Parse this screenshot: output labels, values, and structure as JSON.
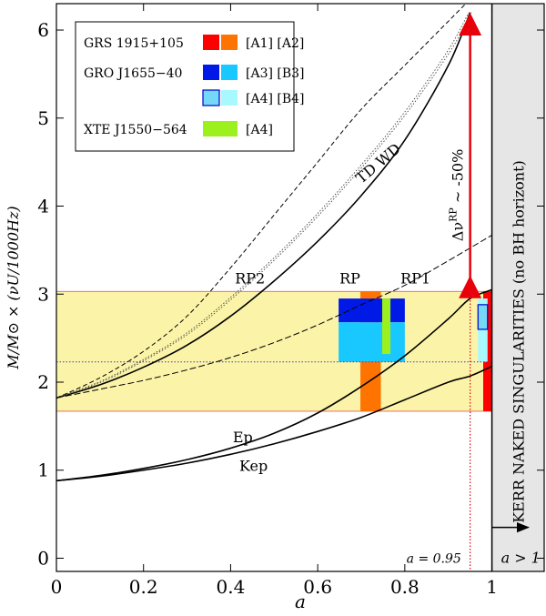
{
  "chart_data": {
    "type": "line",
    "xlabel": "a",
    "ylabel": "M/M⊙ × (νU/1000Hz)",
    "xlim": [
      0,
      1.12
    ],
    "ylim": [
      -0.15,
      6.3
    ],
    "xticks": [
      0,
      0.2,
      0.4,
      0.6,
      0.8,
      1
    ],
    "xtick_labels": [
      "0",
      "0.2",
      "0.4",
      "0.6",
      "0.8",
      "1"
    ],
    "yticks": [
      0,
      1,
      2,
      3,
      4,
      5,
      6
    ],
    "ytick_labels": [
      "0",
      "1",
      "2",
      "3",
      "4",
      "5",
      "6"
    ],
    "series": [
      {
        "name": "Kep",
        "style": "solid",
        "x": [
          0,
          0.1,
          0.2,
          0.3,
          0.4,
          0.5,
          0.6,
          0.7,
          0.8,
          0.9,
          0.95,
          1.0
        ],
        "y": [
          0.88,
          0.93,
          1.0,
          1.08,
          1.18,
          1.3,
          1.44,
          1.6,
          1.8,
          2.0,
          2.07,
          2.18
        ]
      },
      {
        "name": "Ep",
        "style": "solid",
        "x": [
          0,
          0.1,
          0.2,
          0.3,
          0.4,
          0.5,
          0.6,
          0.7,
          0.8,
          0.9,
          0.95,
          1.0
        ],
        "y": [
          0.88,
          0.94,
          1.02,
          1.12,
          1.25,
          1.42,
          1.65,
          1.95,
          2.3,
          2.72,
          2.95,
          3.05
        ]
      },
      {
        "name": "RP",
        "style": "solid",
        "x": [
          0,
          0.1,
          0.2,
          0.3,
          0.4,
          0.5,
          0.6,
          0.7,
          0.8,
          0.9,
          0.95
        ],
        "y": [
          1.82,
          1.97,
          2.17,
          2.42,
          2.75,
          3.15,
          3.6,
          4.12,
          4.75,
          5.6,
          6.2
        ]
      },
      {
        "name": "RP1",
        "style": "longdash",
        "x": [
          0,
          0.1,
          0.2,
          0.3,
          0.4,
          0.5,
          0.6,
          0.7,
          0.8,
          0.9,
          1.0
        ],
        "y": [
          1.82,
          1.92,
          2.02,
          2.14,
          2.28,
          2.45,
          2.65,
          2.88,
          3.1,
          3.38,
          3.67
        ]
      },
      {
        "name": "RP2",
        "style": "dashed",
        "x": [
          0,
          0.1,
          0.2,
          0.3,
          0.4,
          0.5,
          0.6,
          0.7,
          0.8,
          0.9,
          0.94
        ],
        "y": [
          1.82,
          2.05,
          2.35,
          2.75,
          3.3,
          3.9,
          4.5,
          5.1,
          5.6,
          6.1,
          6.3
        ]
      },
      {
        "name": "TD WD",
        "style": "dotted-double",
        "x": [
          0,
          0.1,
          0.2,
          0.3,
          0.4,
          0.5,
          0.6,
          0.7,
          0.8,
          0.9,
          0.95
        ],
        "y": [
          1.82,
          2.0,
          2.25,
          2.55,
          2.95,
          3.4,
          3.9,
          4.45,
          5.05,
          5.75,
          6.2
        ]
      }
    ],
    "band": {
      "y_low": 1.67,
      "y_high": 3.03,
      "color": "#fbf4a8"
    },
    "hline_dotted_y": 2.23,
    "vline_dotted_x": 0.95,
    "naked_region": {
      "x_from": 1.0,
      "x_to": 1.12,
      "label": "KERR NAKED SINGULARITIES (no BH horizont)",
      "arrow_label": "a > 1"
    },
    "vline_label": "a = 0.95",
    "arrow": {
      "x": 0.95,
      "y_from": 3.0,
      "y_to": 6.15,
      "label": "Δν",
      "sup": "RP",
      "suffix": "~ -50%"
    },
    "rects": [
      {
        "name": "A1",
        "x0": 0.98,
        "x1": 1.0,
        "y0": 1.67,
        "y1": 3.03,
        "color": "#ff0000"
      },
      {
        "name": "A2",
        "x0": 0.698,
        "x1": 0.745,
        "y0": 1.67,
        "y1": 3.03,
        "color": "#ff7300"
      },
      {
        "name": "A3",
        "x0": 0.648,
        "x1": 0.8,
        "y0": 2.68,
        "y1": 2.95,
        "color": "#0019e6"
      },
      {
        "name": "B3",
        "x0": 0.648,
        "x1": 0.8,
        "y0": 2.23,
        "y1": 2.68,
        "color": "#19c8ff"
      },
      {
        "name": "A4_green",
        "x0": 0.748,
        "x1": 0.767,
        "y0": 2.32,
        "y1": 2.95,
        "color": "#9cf01e"
      },
      {
        "name": "B4",
        "x0": 0.968,
        "x1": 0.99,
        "y0": 2.23,
        "y1": 2.95,
        "color": "#a8f8ff"
      },
      {
        "name": "A4_gro",
        "x0": 0.968,
        "x1": 0.99,
        "y0": 2.6,
        "y1": 2.88,
        "color": "#74d8f8",
        "stroke": "#0000c8"
      }
    ],
    "curve_labels": [
      {
        "text": "RP2",
        "x": 0.41,
        "y": 3.12
      },
      {
        "text": "RP",
        "x": 0.65,
        "y": 3.12
      },
      {
        "text": "RP1",
        "x": 0.79,
        "y": 3.12
      },
      {
        "text": "Ep",
        "x": 0.405,
        "y": 1.32
      },
      {
        "text": "Kep",
        "x": 0.42,
        "y": 0.99
      },
      {
        "text": "TD WD",
        "x": 0.7,
        "y": 4.25
      }
    ],
    "legend": {
      "placement": "top-left",
      "entries": [
        {
          "source": "GRS 1915+105",
          "swatches": [
            {
              "color": "#ff0000"
            },
            {
              "color": "#ff7300"
            }
          ],
          "tag": "[A1] [A2]"
        },
        {
          "source": "GRO J1655−40",
          "swatches": [
            {
              "color": "#0019e6"
            },
            {
              "color": "#19c8ff"
            }
          ],
          "tag": "[A3] [B3]"
        },
        {
          "source": "",
          "swatches": [
            {
              "color": "#74d8f8",
              "stroke": "#0000c8"
            },
            {
              "color": "#a8f8ff"
            }
          ],
          "tag": "[A4] [B4]"
        },
        {
          "source": "XTE J1550−564",
          "swatches": [
            {
              "color": "#9cf01e",
              "wide": true
            }
          ],
          "tag": "[A4]"
        }
      ]
    }
  }
}
